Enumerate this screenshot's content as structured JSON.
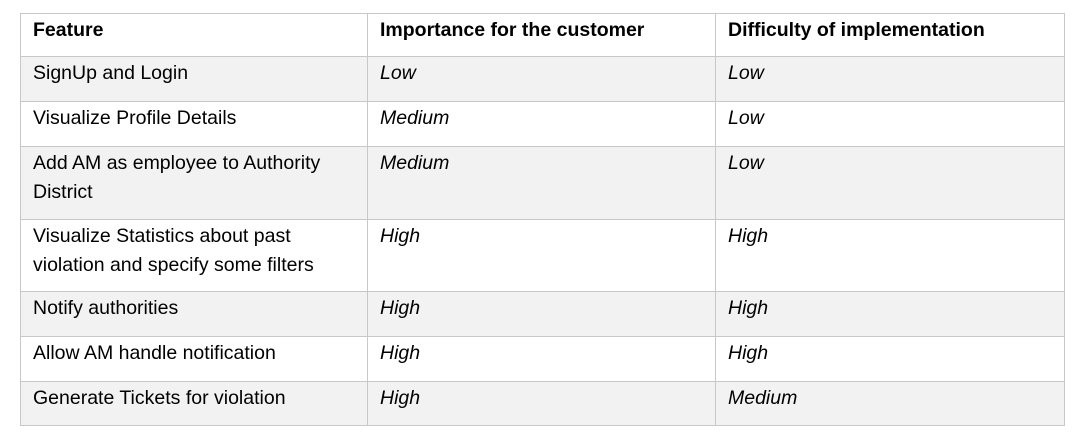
{
  "table": {
    "headers": [
      "Feature",
      "Importance for the customer",
      "Difficulty of implementation"
    ],
    "rows": [
      {
        "feature": "SignUp and Login",
        "importance": "Low",
        "difficulty": "Low"
      },
      {
        "feature": "Visualize Profile Details",
        "importance": "Medium",
        "difficulty": "Low"
      },
      {
        "feature": "Add AM as employee to Authority District",
        "importance": "Medium",
        "difficulty": "Low"
      },
      {
        "feature": "Visualize Statistics about past violation and specify some filters",
        "importance": "High",
        "difficulty": "High"
      },
      {
        "feature": "Notify authorities",
        "importance": "High",
        "difficulty": "High"
      },
      {
        "feature": "Allow AM handle notification",
        "importance": "High",
        "difficulty": "High"
      },
      {
        "feature": "Generate Tickets for violation",
        "importance": "High",
        "difficulty": "Medium"
      }
    ],
    "colors": {
      "shaded_row": "#f2f2f2",
      "border": "#c8c8c8"
    }
  }
}
